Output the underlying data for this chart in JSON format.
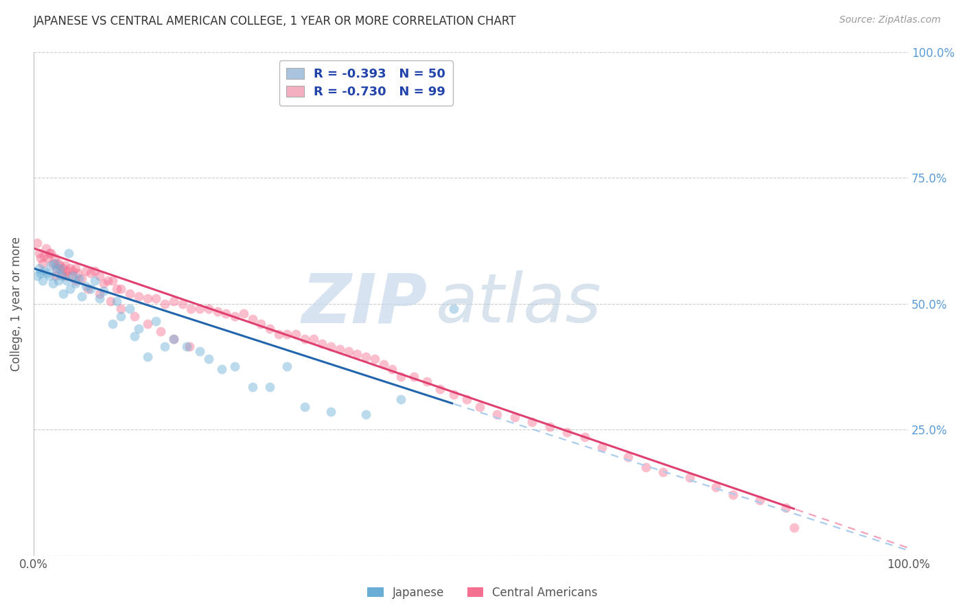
{
  "title": "JAPANESE VS CENTRAL AMERICAN COLLEGE, 1 YEAR OR MORE CORRELATION CHART",
  "source_text": "Source: ZipAtlas.com",
  "ylabel": "College, 1 year or more",
  "xlim": [
    0.0,
    1.0
  ],
  "ylim": [
    0.0,
    1.0
  ],
  "ytick_positions": [
    0.0,
    0.25,
    0.5,
    0.75,
    1.0
  ],
  "right_ytick_labels": [
    "100.0%",
    "75.0%",
    "50.0%",
    "25.0%",
    ""
  ],
  "right_ytick_positions": [
    1.0,
    0.75,
    0.5,
    0.25,
    0.0
  ],
  "legend_entries": [
    {
      "label": "R = -0.393   N = 50",
      "color": "#aac4e0"
    },
    {
      "label": "R = -0.730   N = 99",
      "color": "#f4b0c0"
    }
  ],
  "japanese_color": "#6aaed6",
  "central_american_color": "#f47090",
  "trendline_japanese_color": "#2166ac",
  "trendline_central_color": "#e04070",
  "trendline_dashed_color_j": "#aaccee",
  "trendline_dashed_color_c": "#f4a0b8",
  "watermark_zip": "ZIP",
  "watermark_atlas": "atlas",
  "background_color": "#ffffff",
  "grid_color": "#cccccc",
  "title_color": "#333333",
  "axis_label_color": "#555555",
  "right_axis_color": "#5b9bd5",
  "marker_size": 100,
  "marker_alpha": 0.45,
  "japanese_x": [
    0.004,
    0.006,
    0.008,
    0.01,
    0.012,
    0.015,
    0.018,
    0.02,
    0.022,
    0.024,
    0.026,
    0.028,
    0.03,
    0.032,
    0.034,
    0.038,
    0.04,
    0.042,
    0.045,
    0.048,
    0.052,
    0.055,
    0.06,
    0.065,
    0.07,
    0.075,
    0.08,
    0.09,
    0.095,
    0.1,
    0.11,
    0.115,
    0.12,
    0.13,
    0.14,
    0.15,
    0.16,
    0.175,
    0.19,
    0.2,
    0.215,
    0.23,
    0.25,
    0.27,
    0.29,
    0.31,
    0.34,
    0.38,
    0.42,
    0.48
  ],
  "japanese_y": [
    0.555,
    0.57,
    0.56,
    0.545,
    0.565,
    0.56,
    0.555,
    0.575,
    0.54,
    0.58,
    0.565,
    0.545,
    0.57,
    0.555,
    0.52,
    0.545,
    0.6,
    0.53,
    0.555,
    0.54,
    0.55,
    0.515,
    0.535,
    0.53,
    0.545,
    0.51,
    0.525,
    0.46,
    0.505,
    0.475,
    0.49,
    0.435,
    0.45,
    0.395,
    0.465,
    0.415,
    0.43,
    0.415,
    0.405,
    0.39,
    0.37,
    0.375,
    0.335,
    0.335,
    0.375,
    0.295,
    0.285,
    0.28,
    0.31,
    0.49
  ],
  "central_x": [
    0.004,
    0.006,
    0.008,
    0.01,
    0.012,
    0.014,
    0.016,
    0.018,
    0.02,
    0.022,
    0.024,
    0.026,
    0.028,
    0.03,
    0.032,
    0.034,
    0.036,
    0.038,
    0.04,
    0.042,
    0.045,
    0.048,
    0.05,
    0.055,
    0.06,
    0.065,
    0.07,
    0.075,
    0.08,
    0.085,
    0.09,
    0.095,
    0.1,
    0.11,
    0.12,
    0.13,
    0.14,
    0.15,
    0.16,
    0.17,
    0.18,
    0.19,
    0.2,
    0.21,
    0.22,
    0.23,
    0.24,
    0.25,
    0.26,
    0.27,
    0.28,
    0.29,
    0.3,
    0.31,
    0.32,
    0.33,
    0.34,
    0.35,
    0.36,
    0.37,
    0.38,
    0.39,
    0.4,
    0.41,
    0.42,
    0.435,
    0.45,
    0.465,
    0.48,
    0.495,
    0.51,
    0.53,
    0.55,
    0.57,
    0.59,
    0.61,
    0.63,
    0.65,
    0.68,
    0.7,
    0.72,
    0.75,
    0.78,
    0.8,
    0.83,
    0.86,
    0.025,
    0.035,
    0.048,
    0.062,
    0.075,
    0.088,
    0.1,
    0.115,
    0.13,
    0.145,
    0.16,
    0.178,
    0.87
  ],
  "central_y": [
    0.62,
    0.6,
    0.59,
    0.58,
    0.595,
    0.61,
    0.59,
    0.6,
    0.6,
    0.58,
    0.59,
    0.57,
    0.58,
    0.575,
    0.56,
    0.57,
    0.575,
    0.565,
    0.555,
    0.57,
    0.565,
    0.57,
    0.56,
    0.55,
    0.565,
    0.56,
    0.565,
    0.555,
    0.54,
    0.545,
    0.545,
    0.53,
    0.53,
    0.52,
    0.515,
    0.51,
    0.51,
    0.5,
    0.505,
    0.5,
    0.49,
    0.49,
    0.49,
    0.485,
    0.48,
    0.475,
    0.48,
    0.47,
    0.46,
    0.45,
    0.44,
    0.44,
    0.44,
    0.43,
    0.43,
    0.42,
    0.415,
    0.41,
    0.405,
    0.4,
    0.395,
    0.39,
    0.38,
    0.37,
    0.355,
    0.355,
    0.345,
    0.33,
    0.32,
    0.31,
    0.295,
    0.28,
    0.275,
    0.265,
    0.255,
    0.245,
    0.235,
    0.215,
    0.195,
    0.175,
    0.165,
    0.155,
    0.135,
    0.12,
    0.11,
    0.095,
    0.555,
    0.555,
    0.545,
    0.53,
    0.52,
    0.505,
    0.49,
    0.475,
    0.46,
    0.445,
    0.43,
    0.415,
    0.055
  ]
}
